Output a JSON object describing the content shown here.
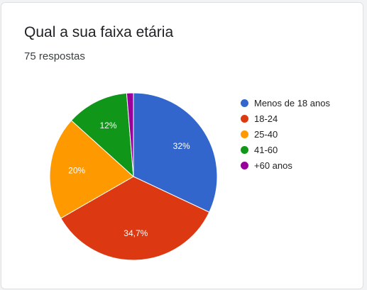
{
  "card": {
    "title": "Qual a sua faixa etária",
    "response_count": "75 respostas"
  },
  "chart_data": {
    "type": "pie",
    "title": "",
    "start_angle_deg": 90,
    "direction": "clockwise",
    "legend_position": "right",
    "slices": [
      {
        "name": "Menos de 18 anos",
        "value": 32.0,
        "label": "32%",
        "color": "#3366cc"
      },
      {
        "name": "18-24",
        "value": 34.7,
        "label": "34,7%",
        "color": "#dc3912"
      },
      {
        "name": "25-40",
        "value": 20.0,
        "label": "20%",
        "color": "#ff9900"
      },
      {
        "name": "41-60",
        "value": 12.0,
        "label": "12%",
        "color": "#109618"
      },
      {
        "name": "+60 anos",
        "value": 1.3,
        "label": "",
        "color": "#990099"
      }
    ]
  }
}
